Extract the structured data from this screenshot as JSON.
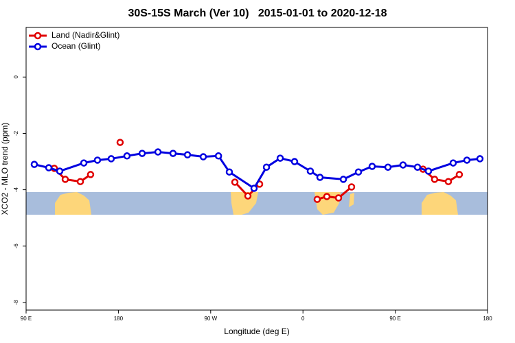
{
  "chart_data": {
    "type": "line",
    "title": "30S-15S March (Ver 10)   2015-01-01 to 2020-12-18",
    "xlabel": "Longitude (deg E)",
    "ylabel": "XCO2 - MLO trend (ppm)",
    "xlim": [
      90,
      540
    ],
    "ylim": [
      -8.27,
      1.76
    ],
    "xticks": [
      {
        "value": 90,
        "label": "90 E"
      },
      {
        "value": 180,
        "label": "180"
      },
      {
        "value": 270,
        "label": "90 W"
      },
      {
        "value": 360,
        "label": "0"
      },
      {
        "value": 450,
        "label": "90 E"
      },
      {
        "value": 540,
        "label": "180"
      }
    ],
    "yticks": [
      0,
      -2,
      -4,
      -6,
      -8
    ],
    "legend": "top-left",
    "series": [
      {
        "name": "Land (Nadir&Glint)",
        "color": "#e00000",
        "x": [
          117.5,
          128.2,
          142.9,
          152.9,
          null,
          181.7,
          null,
          293.6,
          306.3,
          317.7,
          null,
          373.9,
          383.3,
          394.7,
          407.4,
          null,
          477.1,
          488.4,
          501.8,
          512.5
        ],
        "values": [
          -3.24,
          -3.63,
          -3.71,
          -3.46,
          null,
          -2.32,
          null,
          -3.73,
          -4.22,
          -3.8,
          null,
          -4.34,
          -4.24,
          -4.29,
          -3.9,
          null,
          -3.27,
          -3.63,
          -3.71,
          -3.46
        ]
      },
      {
        "name": "Ocean (Glint)",
        "color": "#0000e0",
        "x": [
          98.0,
          112.1,
          122.8,
          146.3,
          159.6,
          173.0,
          188.4,
          203.2,
          218.6,
          233.3,
          247.4,
          262.8,
          277.6,
          288.2,
          312.3,
          324.4,
          337.8,
          351.8,
          367.2,
          376.6,
          399.4,
          414.1,
          427.5,
          442.9,
          457.6,
          471.7,
          482.4,
          506.5,
          519.9,
          532.6
        ],
        "values": [
          -3.1,
          -3.22,
          -3.34,
          -3.05,
          -2.95,
          -2.9,
          -2.8,
          -2.71,
          -2.66,
          -2.71,
          -2.76,
          -2.83,
          -2.8,
          -3.37,
          -3.95,
          -3.2,
          -2.88,
          -3.0,
          -3.34,
          -3.56,
          -3.63,
          -3.37,
          -3.17,
          -3.2,
          -3.12,
          -3.2,
          -3.34,
          -3.05,
          -2.95,
          -2.9
        ]
      }
    ]
  }
}
